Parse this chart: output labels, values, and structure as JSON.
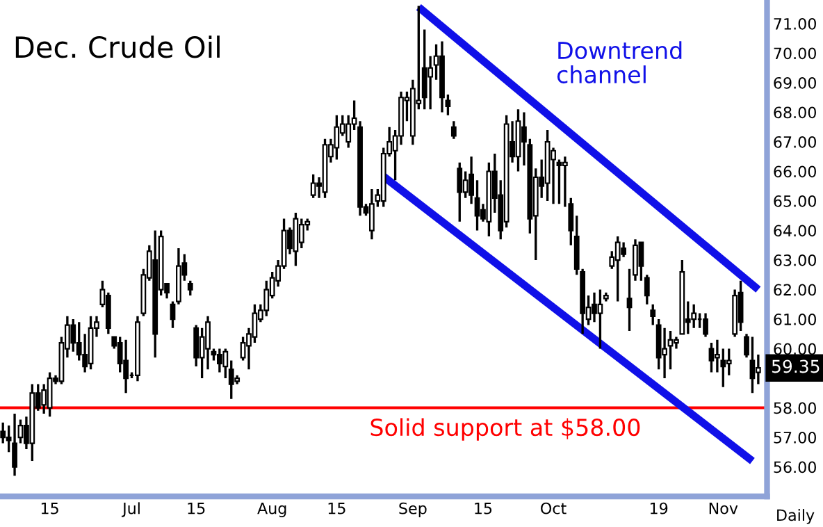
{
  "chart_data": {
    "type": "candlestick",
    "title": "Dec. Crude Oil",
    "categories": [
      null,
      null,
      null,
      null,
      null,
      null,
      null,
      null,
      "15",
      null,
      null,
      null,
      null,
      null,
      null,
      null,
      null,
      null,
      null,
      null,
      null,
      null,
      "Jul",
      null,
      null,
      null,
      null,
      null,
      null,
      null,
      null,
      null,
      null,
      "15",
      null,
      null,
      null,
      null,
      null,
      null,
      null,
      null,
      null,
      null,
      null,
      null,
      "Aug",
      null,
      null,
      null,
      null,
      null,
      null,
      null,
      null,
      null,
      null,
      "15",
      null,
      null,
      null,
      null,
      null,
      null,
      null,
      null,
      null,
      null,
      null,
      null,
      "Sep",
      null,
      null,
      null,
      null,
      null,
      null,
      null,
      null,
      null,
      null,
      null,
      "15",
      null,
      null,
      null,
      null,
      null,
      null,
      null,
      null,
      null,
      null,
      null,
      "Oct",
      null,
      null,
      null,
      null,
      null,
      null,
      null,
      null,
      null,
      null,
      null,
      null,
      null,
      null,
      null,
      null,
      null,
      "19",
      null,
      null,
      null,
      null,
      null,
      null,
      null,
      null,
      null,
      null,
      "Nov",
      null,
      null,
      null,
      null,
      null,
      null
    ],
    "color": "#000000",
    "ohlc": [
      [
        57.2,
        57.5,
        56.8,
        57.0
      ],
      [
        57.0,
        57.4,
        56.5,
        56.9
      ],
      [
        56.8,
        57.8,
        55.7,
        56.0
      ],
      [
        57.0,
        57.6,
        56.8,
        57.4
      ],
      [
        57.4,
        57.7,
        56.6,
        56.8
      ],
      [
        56.8,
        58.8,
        56.2,
        58.5
      ],
      [
        58.5,
        58.8,
        57.9,
        58.0
      ],
      [
        58.1,
        58.8,
        57.8,
        58.6
      ],
      [
        58.0,
        59.2,
        57.7,
        59.0
      ],
      [
        59.0,
        59.1,
        58.8,
        58.9
      ],
      [
        58.9,
        60.4,
        58.8,
        60.2
      ],
      [
        60.0,
        61.1,
        59.7,
        60.8
      ],
      [
        60.8,
        61.0,
        59.9,
        60.2
      ],
      [
        60.2,
        60.9,
        59.6,
        59.8
      ],
      [
        59.8,
        60.5,
        59.2,
        59.4
      ],
      [
        59.5,
        61.1,
        59.3,
        60.7
      ],
      [
        60.7,
        61.1,
        60.4,
        60.9
      ],
      [
        61.5,
        62.3,
        61.4,
        62.0
      ],
      [
        61.8,
        61.9,
        60.5,
        60.7
      ],
      [
        60.4,
        60.4,
        60.0,
        60.1
      ],
      [
        60.2,
        60.4,
        59.2,
        59.5
      ],
      [
        59.6,
        60.3,
        58.5,
        59.0
      ],
      [
        59.1,
        59.2,
        59.0,
        59.1
      ],
      [
        59.1,
        61.1,
        58.9,
        60.9
      ],
      [
        61.2,
        62.7,
        61.1,
        62.5
      ],
      [
        62.4,
        63.5,
        62.3,
        63.3
      ],
      [
        63.0,
        64.0,
        59.7,
        60.5
      ],
      [
        62.0,
        64.0,
        61.8,
        63.8
      ],
      [
        62.2,
        62.2,
        61.7,
        61.9
      ],
      [
        61.5,
        61.6,
        60.7,
        61.0
      ],
      [
        61.6,
        63.4,
        61.5,
        62.8
      ],
      [
        62.9,
        63.2,
        62.3,
        62.5
      ],
      [
        62.2,
        62.3,
        61.8,
        62.0
      ],
      [
        60.7,
        60.8,
        59.4,
        59.7
      ],
      [
        59.7,
        60.7,
        59.0,
        60.4
      ],
      [
        60.0,
        61.1,
        59.3,
        60.9
      ],
      [
        59.9,
        60.0,
        59.6,
        59.8
      ],
      [
        59.8,
        60.0,
        59.2,
        59.5
      ],
      [
        59.4,
        60.0,
        59.0,
        59.9
      ],
      [
        59.3,
        59.6,
        58.3,
        58.8
      ],
      [
        58.9,
        59.1,
        58.8,
        59.0
      ],
      [
        59.7,
        60.4,
        59.6,
        60.2
      ],
      [
        60.1,
        60.7,
        59.3,
        60.5
      ],
      [
        60.4,
        61.5,
        60.2,
        61.2
      ],
      [
        61.0,
        61.5,
        60.9,
        61.3
      ],
      [
        61.3,
        62.3,
        61.1,
        62.0
      ],
      [
        61.8,
        62.6,
        61.7,
        62.4
      ],
      [
        62.3,
        63.0,
        62.1,
        62.8
      ],
      [
        62.8,
        64.4,
        62.7,
        64.0
      ],
      [
        64.0,
        64.1,
        63.2,
        63.4
      ],
      [
        63.3,
        64.6,
        62.8,
        64.4
      ],
      [
        63.6,
        64.4,
        63.4,
        64.2
      ],
      [
        64.2,
        64.4,
        64.0,
        64.3
      ],
      [
        65.2,
        65.9,
        65.1,
        65.6
      ],
      [
        65.6,
        65.8,
        65.1,
        65.5
      ],
      [
        65.3,
        67.1,
        65.1,
        66.9
      ],
      [
        66.5,
        67.1,
        66.3,
        66.9
      ],
      [
        66.8,
        67.9,
        66.4,
        67.5
      ],
      [
        67.3,
        67.9,
        67.2,
        67.6
      ],
      [
        67.0,
        67.9,
        66.8,
        67.6
      ],
      [
        67.6,
        68.4,
        67.4,
        67.8
      ],
      [
        67.5,
        67.7,
        64.5,
        64.8
      ],
      [
        64.8,
        64.9,
        64.5,
        64.6
      ],
      [
        64.0,
        65.4,
        63.7,
        64.9
      ],
      [
        65.0,
        65.4,
        64.8,
        65.2
      ],
      [
        65.0,
        66.8,
        64.8,
        66.6
      ],
      [
        66.6,
        67.5,
        66.5,
        67.0
      ],
      [
        66.7,
        67.4,
        65.7,
        67.2
      ],
      [
        67.2,
        68.7,
        66.9,
        68.5
      ],
      [
        68.4,
        68.7,
        67.7,
        68.5
      ],
      [
        67.2,
        69.1,
        66.9,
        68.8
      ],
      [
        68.3,
        71.6,
        68.1,
        68.4
      ],
      [
        69.5,
        70.8,
        68.1,
        68.5
      ],
      [
        69.2,
        69.9,
        68.1,
        69.5
      ],
      [
        69.6,
        70.3,
        69.1,
        69.9
      ],
      [
        69.9,
        70.4,
        68.0,
        68.5
      ],
      [
        68.4,
        68.6,
        67.9,
        68.2
      ],
      [
        67.5,
        67.7,
        67.1,
        67.2
      ],
      [
        66.1,
        66.3,
        64.3,
        65.3
      ],
      [
        65.3,
        66.0,
        65.1,
        65.7
      ],
      [
        65.9,
        66.5,
        64.9,
        65.2
      ],
      [
        65.1,
        65.7,
        64.0,
        64.5
      ],
      [
        64.7,
        64.9,
        64.3,
        64.4
      ],
      [
        64.3,
        66.3,
        63.8,
        66.0
      ],
      [
        66.0,
        66.6,
        64.6,
        65.1
      ],
      [
        65.2,
        65.7,
        63.7,
        64.0
      ],
      [
        64.3,
        67.9,
        64.1,
        67.6
      ],
      [
        67.0,
        67.7,
        66.3,
        66.5
      ],
      [
        66.5,
        68.1,
        66.0,
        67.7
      ],
      [
        67.5,
        68.0,
        66.2,
        67.0
      ],
      [
        66.9,
        67.1,
        63.9,
        64.4
      ],
      [
        64.5,
        66.1,
        63.0,
        65.8
      ],
      [
        65.8,
        66.4,
        65.1,
        65.5
      ],
      [
        65.6,
        67.4,
        65.0,
        67.0
      ],
      [
        66.4,
        66.8,
        64.9,
        66.7
      ],
      [
        66.3,
        66.4,
        64.9,
        66.2
      ],
      [
        66.2,
        66.5,
        64.8,
        66.3
      ],
      [
        64.9,
        65.1,
        63.5,
        64.0
      ],
      [
        63.8,
        64.5,
        62.5,
        62.7
      ],
      [
        62.6,
        62.7,
        60.5,
        61.2
      ],
      [
        61.0,
        61.8,
        60.8,
        61.4
      ],
      [
        61.5,
        61.9,
        60.9,
        61.2
      ],
      [
        61.2,
        62.0,
        60.0,
        61.5
      ],
      [
        61.7,
        61.9,
        61.6,
        61.8
      ],
      [
        62.8,
        63.3,
        62.7,
        63.1
      ],
      [
        63.0,
        63.8,
        61.6,
        63.6
      ],
      [
        63.4,
        63.6,
        63.1,
        63.2
      ],
      [
        61.7,
        62.7,
        60.6,
        61.4
      ],
      [
        62.5,
        63.7,
        62.3,
        63.5
      ],
      [
        63.6,
        63.6,
        62.3,
        62.8
      ],
      [
        62.4,
        62.5,
        61.5,
        61.8
      ],
      [
        61.3,
        61.5,
        60.8,
        61.1
      ],
      [
        60.8,
        61.0,
        59.3,
        59.7
      ],
      [
        59.8,
        60.7,
        59.0,
        60.0
      ],
      [
        60.1,
        60.6,
        59.3,
        60.3
      ],
      [
        60.2,
        60.4,
        60.0,
        60.3
      ],
      [
        60.5,
        63.0,
        60.5,
        62.6
      ],
      [
        61.0,
        61.6,
        60.5,
        60.9
      ],
      [
        61.0,
        61.5,
        60.7,
        61.2
      ],
      [
        61.0,
        61.2,
        60.7,
        61.0
      ],
      [
        61.0,
        61.2,
        60.4,
        60.5
      ],
      [
        60.0,
        60.2,
        59.2,
        59.6
      ],
      [
        59.7,
        60.3,
        59.2,
        59.8
      ],
      [
        59.6,
        60.0,
        58.7,
        59.4
      ],
      [
        59.5,
        60.0,
        59.1,
        59.6
      ],
      [
        60.5,
        62.0,
        60.4,
        61.8
      ],
      [
        61.9,
        62.3,
        60.6,
        60.9
      ],
      [
        60.4,
        60.5,
        59.7,
        59.8
      ],
      [
        59.6,
        60.4,
        58.5,
        59.0
      ],
      [
        59.2,
        59.8,
        58.8,
        59.35
      ]
    ],
    "series": [
      {
        "type": "line",
        "color": "#1010e8",
        "values": [
          null,
          null,
          null,
          null,
          null,
          null,
          null,
          null,
          null,
          null,
          null,
          null,
          null,
          null,
          null,
          null,
          null,
          null,
          null,
          null,
          null,
          null,
          null,
          null,
          null,
          null,
          null,
          null,
          null,
          null,
          null,
          null,
          null,
          null,
          null,
          null,
          null,
          null,
          null,
          null,
          null,
          null,
          null,
          null,
          null,
          null,
          null,
          null,
          null,
          null,
          null,
          null,
          null,
          null,
          null,
          null,
          null,
          null,
          null,
          null,
          null,
          null,
          null,
          null,
          null,
          null,
          null,
          null,
          null,
          null,
          null,
          71.56,
          null,
          null,
          null,
          null,
          null,
          null,
          null,
          null,
          null,
          null,
          null,
          null,
          null,
          null,
          null,
          null,
          null,
          null,
          null,
          null,
          null,
          null,
          null,
          null,
          null,
          null,
          null,
          null,
          null,
          null,
          null,
          null,
          null,
          null,
          null,
          null,
          null,
          null,
          null,
          null,
          null,
          null,
          null,
          null,
          null,
          null,
          null,
          null,
          null,
          null,
          null,
          null,
          null,
          null,
          null,
          null,
          null,
          62.0
        ]
      },
      {
        "type": "line",
        "color": "#1010e8",
        "values": [
          null,
          null,
          null,
          null,
          null,
          null,
          null,
          null,
          null,
          null,
          null,
          null,
          null,
          null,
          null,
          null,
          null,
          null,
          null,
          null,
          null,
          null,
          null,
          null,
          null,
          null,
          null,
          null,
          null,
          null,
          null,
          null,
          null,
          null,
          null,
          null,
          null,
          null,
          null,
          null,
          null,
          null,
          null,
          null,
          null,
          null,
          null,
          null,
          null,
          null,
          null,
          null,
          null,
          null,
          null,
          null,
          null,
          null,
          null,
          null,
          null,
          null,
          null,
          null,
          null,
          65.83,
          null,
          null,
          null,
          null,
          null,
          null,
          null,
          null,
          null,
          null,
          null,
          null,
          null,
          null,
          null,
          null,
          null,
          null,
          null,
          null,
          null,
          null,
          null,
          null,
          null,
          null,
          null,
          null,
          null,
          null,
          null,
          null,
          null,
          null,
          null,
          null,
          null,
          null,
          null,
          null,
          null,
          null,
          null,
          null,
          null,
          null,
          null,
          null,
          null,
          null,
          null,
          null,
          null,
          null,
          null,
          null,
          null,
          null,
          null,
          null,
          null,
          null,
          56.2,
          null
        ]
      }
    ],
    "ylim": [
      55.0,
      71.8
    ],
    "yticks": [
      {
        "value": 56,
        "label": "56.00"
      },
      {
        "value": 57,
        "label": "57.00"
      },
      {
        "value": 58,
        "label": "58.00"
      },
      {
        "value": 60,
        "label": "60.00"
      },
      {
        "value": 61,
        "label": "61.00"
      },
      {
        "value": 62,
        "label": "62.00"
      },
      {
        "value": 63,
        "label": "63.00"
      },
      {
        "value": 64,
        "label": "64.00"
      },
      {
        "value": 65,
        "label": "65.00"
      },
      {
        "value": 66,
        "label": "66.00"
      },
      {
        "value": 67,
        "label": "67.00"
      },
      {
        "value": 68,
        "label": "68.00"
      },
      {
        "value": 69,
        "label": "69.00"
      },
      {
        "value": 70,
        "label": "70.00"
      },
      {
        "value": 71,
        "label": "71.00"
      }
    ],
    "ref_lines": [
      {
        "axis": "y",
        "value": 58.0,
        "label": "Solid support at $58.00",
        "color": "#ff0000"
      }
    ],
    "annotations": [
      "Downtrend channel",
      "Daily",
      {
        "text": "59.35",
        "y": 59.35
      }
    ],
    "grid": false,
    "legend": false
  }
}
